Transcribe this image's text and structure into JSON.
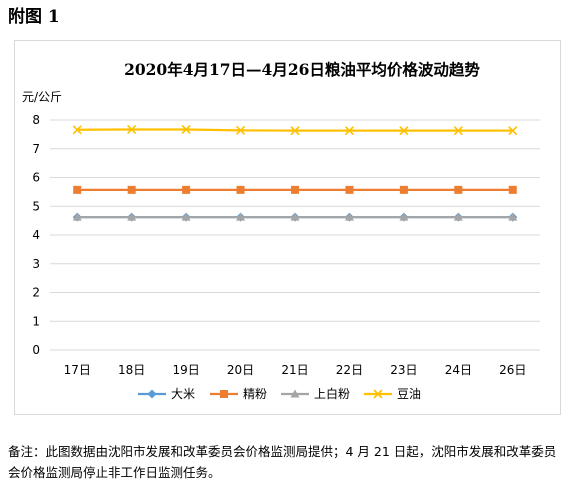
{
  "figure_label": "附图 1",
  "note": "备注：此图数据由沈阳市发展和改革委员会价格监测局提供；4 月 21 日起，沈阳市发展和改革委员会价格监测局停止非工作日监测任务。",
  "chart_data": {
    "type": "line",
    "title": "2020年4月17日—4月26日粮油平均价格波动趋势",
    "ylabel": "元/公斤",
    "xlabel": "",
    "categories": [
      "17日",
      "18日",
      "19日",
      "20日",
      "21日",
      "22日",
      "23日",
      "24日",
      "26日"
    ],
    "yticks": [
      "0",
      "1",
      "2",
      "3",
      "4",
      "5",
      "6",
      "7",
      "8"
    ],
    "ylim": [
      0,
      8
    ],
    "grid": true,
    "legend": "bottom",
    "series": [
      {
        "name": "大米",
        "color": "#5b9bd5",
        "marker": "diamond",
        "values": [
          4.62,
          4.62,
          4.62,
          4.62,
          4.62,
          4.62,
          4.62,
          4.62,
          4.62
        ]
      },
      {
        "name": "精粉",
        "color": "#ed7d31",
        "marker": "square",
        "values": [
          5.57,
          5.57,
          5.57,
          5.57,
          5.57,
          5.57,
          5.57,
          5.57,
          5.57
        ]
      },
      {
        "name": "上白粉",
        "color": "#a5a5a5",
        "marker": "triangle",
        "values": [
          4.62,
          4.62,
          4.62,
          4.62,
          4.62,
          4.62,
          4.62,
          4.62,
          4.62
        ]
      },
      {
        "name": "豆油",
        "color": "#ffc000",
        "marker": "x",
        "values": [
          7.66,
          7.67,
          7.67,
          7.64,
          7.63,
          7.63,
          7.63,
          7.63,
          7.63
        ]
      }
    ]
  }
}
